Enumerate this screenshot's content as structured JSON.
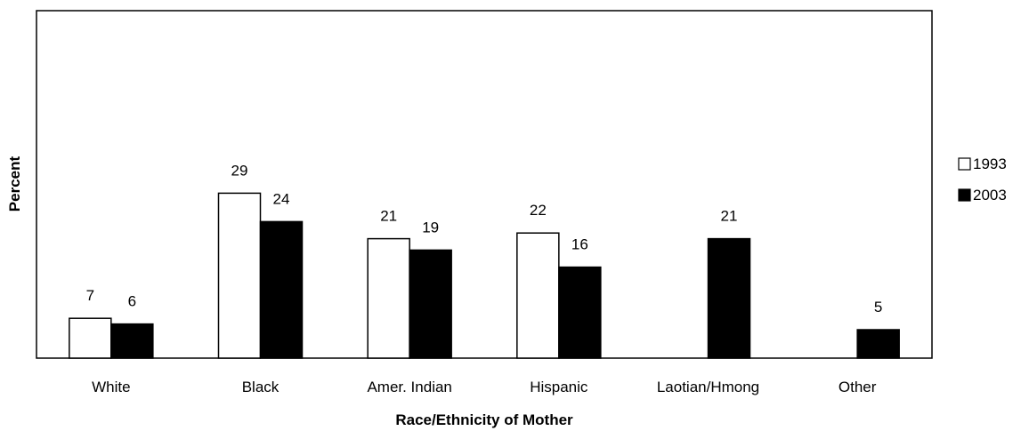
{
  "chart_data": {
    "type": "bar",
    "title": "",
    "xlabel": "Race/Ethnicity of Mother",
    "ylabel": "Percent",
    "ylim": [
      0,
      40
    ],
    "grid": false,
    "legend_position": "right",
    "categories": [
      "White",
      "Black",
      "Amer. Indian",
      "Hispanic",
      "Laotian/Hmong",
      "Other"
    ],
    "series": [
      {
        "name": "1993",
        "color": "#ffffff",
        "values": [
          7,
          29,
          21,
          22,
          null,
          null
        ]
      },
      {
        "name": "2003",
        "color": "#000000",
        "values": [
          6,
          24,
          19,
          16,
          21,
          5
        ]
      }
    ]
  }
}
